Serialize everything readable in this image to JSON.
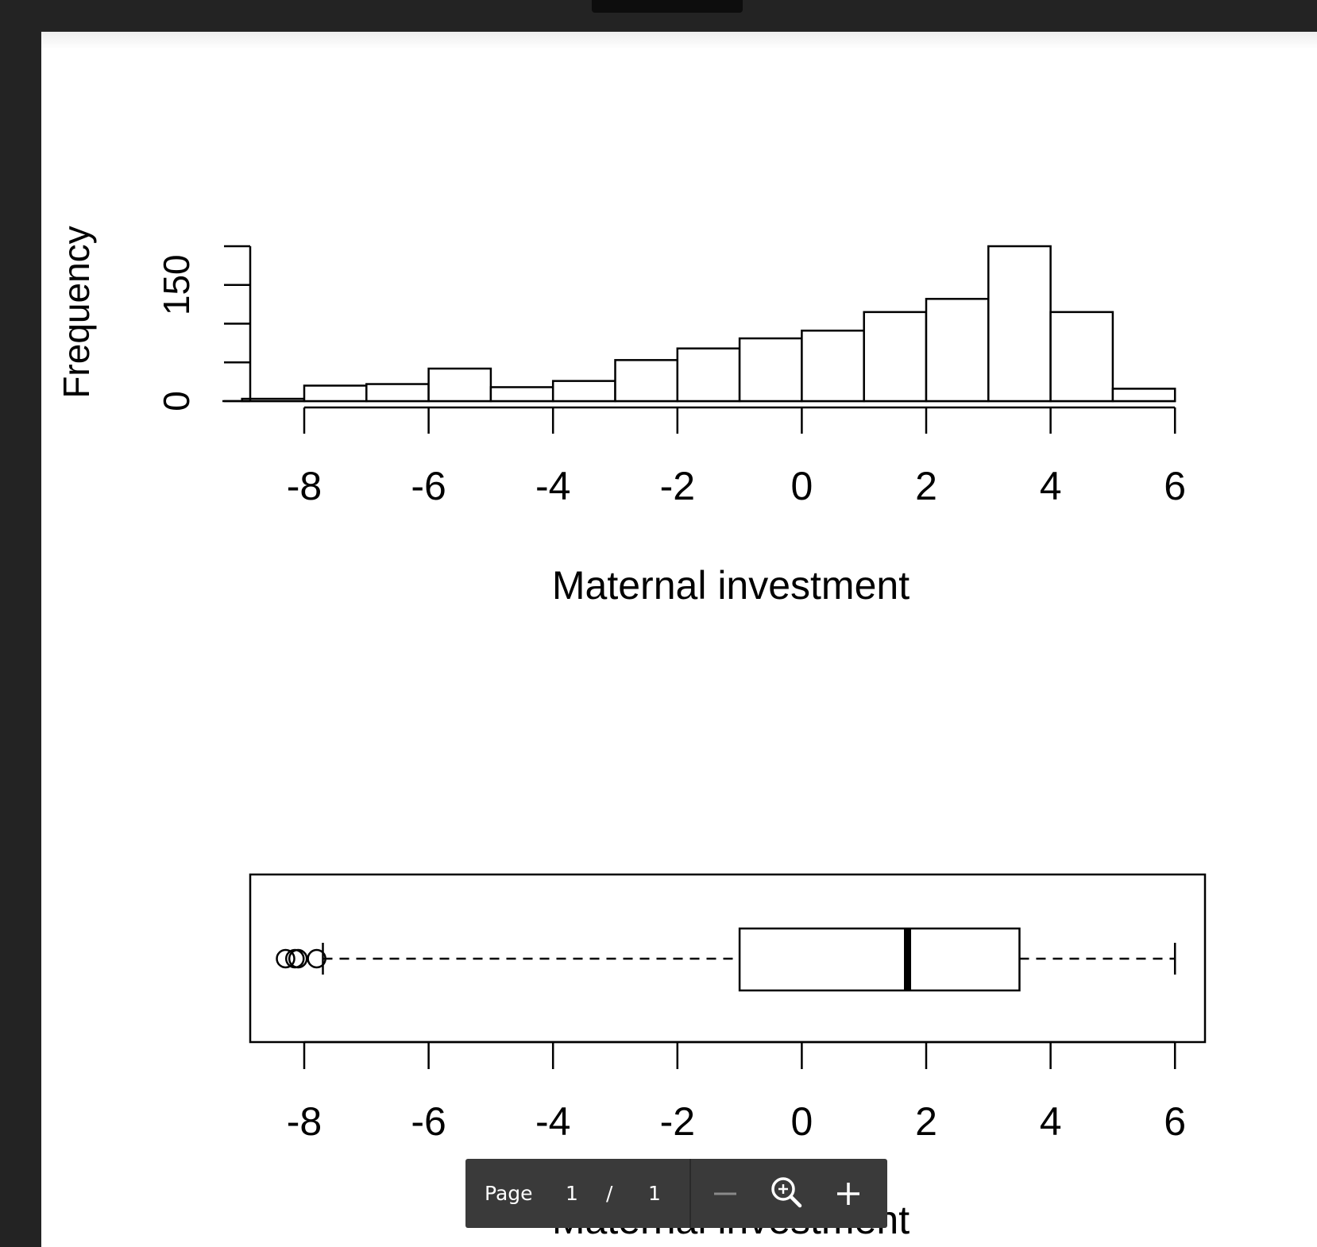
{
  "toolbar": {
    "page_label": "Page",
    "page_number": "1",
    "separator": "/",
    "page_total": "1",
    "zoom_out_icon": "minus-icon",
    "fit_zoom_icon": "zoom-magnifier-icon",
    "zoom_in_icon": "plus-icon"
  },
  "chart_data": [
    {
      "type": "bar",
      "title": "",
      "xlabel": "Maternal investment",
      "ylabel": "Frequency",
      "y_tick_labels": [
        "0",
        "150"
      ],
      "x_tick_labels": [
        "-8",
        "-6",
        "-4",
        "-2",
        "0",
        "2",
        "4",
        "6"
      ],
      "xlim": [
        -9,
        6
      ],
      "ylim": [
        0,
        200
      ],
      "bins": [
        {
          "from": -9,
          "to": -8,
          "count": 3
        },
        {
          "from": -8,
          "to": -7,
          "count": 20
        },
        {
          "from": -7,
          "to": -6,
          "count": 22
        },
        {
          "from": -6,
          "to": -5,
          "count": 42
        },
        {
          "from": -5,
          "to": -4,
          "count": 18
        },
        {
          "from": -4,
          "to": -3,
          "count": 26
        },
        {
          "from": -3,
          "to": -2,
          "count": 53
        },
        {
          "from": -2,
          "to": -1,
          "count": 68
        },
        {
          "from": -1,
          "to": 0,
          "count": 81
        },
        {
          "from": 0,
          "to": 1,
          "count": 91
        },
        {
          "from": 1,
          "to": 2,
          "count": 115
        },
        {
          "from": 2,
          "to": 3,
          "count": 132
        },
        {
          "from": 3,
          "to": 4,
          "count": 200
        },
        {
          "from": 4,
          "to": 5,
          "count": 115
        },
        {
          "from": 5,
          "to": 6,
          "count": 16
        }
      ]
    },
    {
      "type": "boxplot",
      "xlabel": "Maternal investment",
      "x_tick_labels": [
        "-8",
        "-6",
        "-4",
        "-2",
        "0",
        "2",
        "4",
        "6"
      ],
      "xlim": [
        -8.9,
        6.5
      ],
      "whisker_low": -7.7,
      "q1": -1.0,
      "median": 1.7,
      "q3": 3.5,
      "whisker_high": 6.0,
      "outliers": [
        -8.3,
        -8.15,
        -8.1,
        -7.8
      ]
    }
  ]
}
